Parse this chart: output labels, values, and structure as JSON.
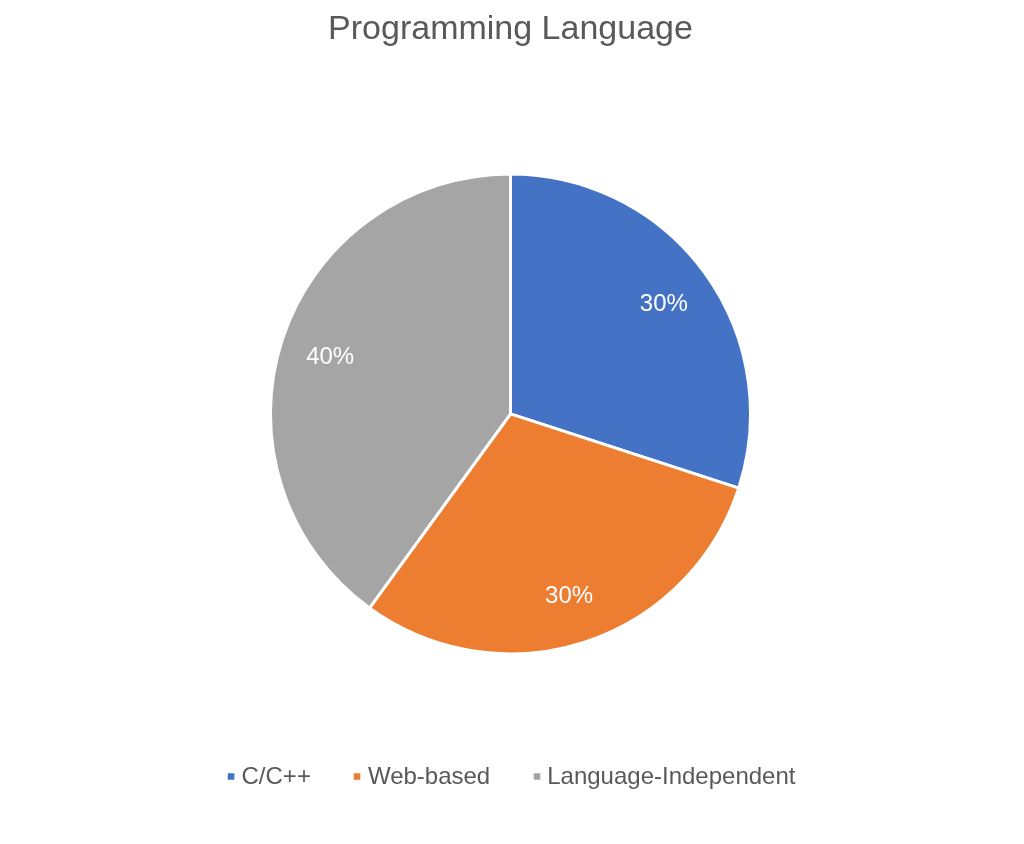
{
  "chart_data": {
    "type": "pie",
    "title": "Programming Language",
    "categories": [
      "C/C++",
      "Web-based",
      "Language-Independent"
    ],
    "values": [
      30,
      30,
      40
    ],
    "colors": [
      "#4472c4",
      "#ed7d31",
      "#a5a5a5"
    ],
    "value_labels": [
      "30%",
      "30%",
      "40%"
    ],
    "legend": "bottom"
  }
}
